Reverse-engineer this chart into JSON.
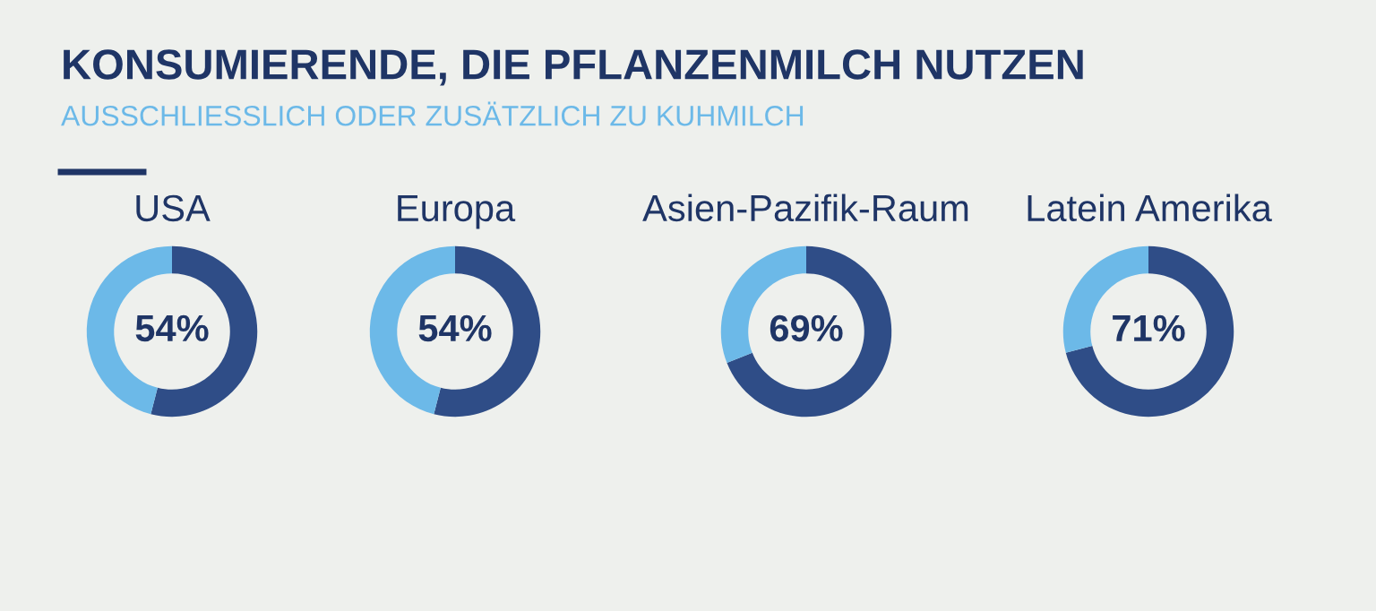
{
  "chart_data": [
    {
      "type": "other",
      "title": "KONSUMIERENDE, DIE PFLANZENMILCH NUTZEN",
      "subtitle": "AUSSCHLIESSLICH ODER ZUSÄTZLICH ZU KUHMILCH"
    },
    {
      "type": "donut",
      "title": "USA",
      "categories": [
        null,
        null
      ],
      "values": [
        54,
        46
      ],
      "colors": [
        "#2f4d87",
        "#6cb9e8"
      ],
      "value_labels": [
        "54%",
        null
      ]
    },
    {
      "type": "donut",
      "title": "Europa",
      "categories": [
        null,
        null
      ],
      "values": [
        54,
        46
      ],
      "colors": [
        "#2f4d87",
        "#6cb9e8"
      ],
      "value_labels": [
        "54%",
        null
      ]
    },
    {
      "type": "donut",
      "title": "Asien-Pazifik-Raum",
      "categories": [
        null,
        null
      ],
      "values": [
        69,
        31
      ],
      "colors": [
        "#2f4d87",
        "#6cb9e8"
      ],
      "value_labels": [
        "69%",
        null
      ]
    },
    {
      "type": "donut",
      "title": "Latein Amerika",
      "categories": [
        null,
        null
      ],
      "values": [
        71,
        29
      ],
      "colors": [
        "#2f4d87",
        "#6cb9e8"
      ],
      "value_labels": [
        "71%",
        null
      ]
    }
  ]
}
